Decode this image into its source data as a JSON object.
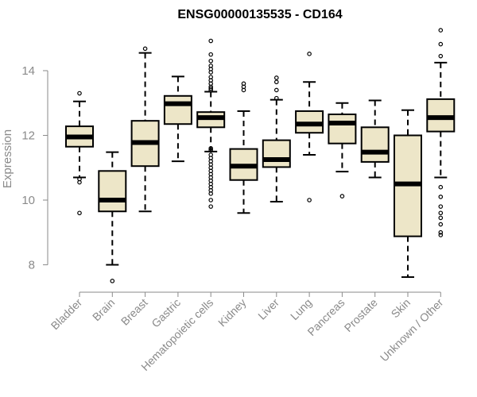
{
  "chart_data": {
    "type": "boxplot",
    "title": "ENSG00000135535 - CD164",
    "xlabel": "",
    "ylabel": "Expression",
    "ylim": [
      7.3,
      15.35
    ],
    "yticks": [
      8,
      10,
      12,
      14
    ],
    "categories": [
      "Bladder",
      "Brain",
      "Breast",
      "Gastric",
      "Hematopoietic cells",
      "Kidney",
      "Liver",
      "Lung",
      "Pancreas",
      "Prostate",
      "Skin",
      "Unknown / Other"
    ],
    "boxes": [
      {
        "whisker_low": 10.7,
        "q1": 11.65,
        "median": 11.95,
        "q3": 12.28,
        "whisker_high": 13.05,
        "outliers": [
          10.65,
          10.55,
          9.6,
          13.3
        ]
      },
      {
        "whisker_low": 8.0,
        "q1": 9.65,
        "median": 10.0,
        "q3": 10.9,
        "whisker_high": 11.48,
        "outliers": [
          7.5
        ]
      },
      {
        "whisker_low": 9.65,
        "q1": 11.05,
        "median": 11.78,
        "q3": 12.45,
        "whisker_high": 14.55,
        "outliers": [
          14.68
        ]
      },
      {
        "whisker_low": 11.2,
        "q1": 12.35,
        "median": 12.98,
        "q3": 13.22,
        "whisker_high": 13.82,
        "outliers": []
      },
      {
        "whisker_low": 11.5,
        "q1": 12.25,
        "median": 12.55,
        "q3": 12.72,
        "whisker_high": 13.35,
        "outliers": [
          14.92,
          14.5,
          14.3,
          14.15,
          14.05,
          13.95,
          13.8,
          13.7,
          13.6,
          13.5,
          13.45,
          13.4,
          11.6,
          11.55,
          11.4,
          11.3,
          11.2,
          11.1,
          11.0,
          10.9,
          10.8,
          10.7,
          10.6,
          10.5,
          10.4,
          10.3,
          10.2,
          10.0,
          9.8
        ]
      },
      {
        "whisker_low": 9.6,
        "q1": 10.62,
        "median": 11.05,
        "q3": 11.58,
        "whisker_high": 12.75,
        "outliers": [
          13.5,
          13.6,
          13.4
        ]
      },
      {
        "whisker_low": 9.95,
        "q1": 11.02,
        "median": 11.25,
        "q3": 11.85,
        "whisker_high": 13.1,
        "outliers": [
          13.78,
          13.65,
          13.4,
          13.15
        ]
      },
      {
        "whisker_low": 11.4,
        "q1": 12.08,
        "median": 12.35,
        "q3": 12.75,
        "whisker_high": 13.65,
        "outliers": [
          14.52,
          10.0
        ]
      },
      {
        "whisker_low": 10.88,
        "q1": 11.75,
        "median": 12.38,
        "q3": 12.65,
        "whisker_high": 13.0,
        "outliers": [
          10.12
        ]
      },
      {
        "whisker_low": 10.7,
        "q1": 11.18,
        "median": 11.48,
        "q3": 12.25,
        "whisker_high": 13.08,
        "outliers": []
      },
      {
        "whisker_low": 7.62,
        "q1": 8.88,
        "median": 10.5,
        "q3": 12.0,
        "whisker_high": 12.78,
        "outliers": []
      },
      {
        "whisker_low": 10.7,
        "q1": 12.12,
        "median": 12.55,
        "q3": 13.12,
        "whisker_high": 14.25,
        "outliers": [
          15.25,
          14.82,
          14.45,
          10.4,
          10.1,
          9.8,
          9.6,
          9.45,
          9.25,
          9.0,
          8.92
        ]
      }
    ],
    "colors": {
      "box_fill": "#ede6c8",
      "stroke": "#000000",
      "axis": "#8a8a8a",
      "text": "#8a8a8a"
    }
  }
}
